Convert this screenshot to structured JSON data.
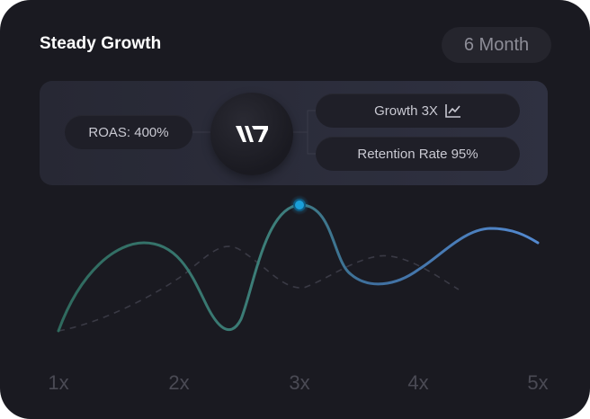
{
  "card": {
    "title": "Steady Growth",
    "period_button": "6 Month"
  },
  "stats": {
    "roas": "ROAS: 400%",
    "growth": "Growth 3X",
    "growth_icon": "line-chart-icon",
    "retention": "Retention Rate 95%",
    "logo": "w7-logo"
  },
  "chart_data": {
    "type": "line",
    "categories": [
      "1x",
      "2x",
      "3x",
      "4x",
      "5x"
    ],
    "highlight_category": "3x",
    "series": [
      {
        "style": "solid-gradient",
        "colors": [
          "#2e6b60",
          "#4f83c8"
        ]
      },
      {
        "style": "dashed",
        "color": "#3c3c46"
      }
    ]
  }
}
